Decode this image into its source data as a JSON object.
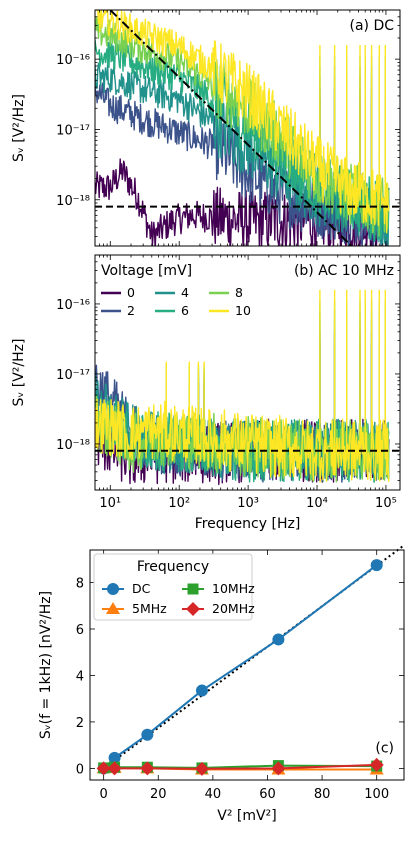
{
  "chart_data": [
    {
      "panel": "a",
      "type": "line",
      "annotation": "(a) DC",
      "xlabel": "",
      "ylabel": "S_V [V²/Hz]",
      "xscale": "log",
      "yscale": "log",
      "xlim": [
        6,
        160000
      ],
      "ylim": [
        2.2e-19,
        5e-16
      ],
      "yticks": [
        1e-18,
        1e-17,
        1e-16
      ],
      "ytick_labels": [
        "10⁻¹⁸",
        "10⁻¹⁷",
        "10⁻¹⁶"
      ],
      "reference_lines": [
        {
          "style": "dashed",
          "color": "#000000",
          "points": [
            [
              6,
              8e-19
            ],
            [
              160000,
              8e-19
            ]
          ]
        },
        {
          "style": "dashdot",
          "color": "#000000",
          "points": [
            [
              10,
              5e-16
            ],
            [
              31600,
              2.2e-19
            ]
          ]
        }
      ],
      "series": [
        {
          "name": "0",
          "color": "#440154",
          "points": [
            [
              10,
              1.5e-18
            ],
            [
              15,
              2.6e-18
            ],
            [
              25,
              1.1e-18
            ],
            [
              40,
              3e-19
            ],
            [
              80,
              5e-19
            ],
            [
              150,
              6e-19
            ],
            [
              1000,
              5e-19
            ],
            [
              10000,
              5e-19
            ],
            [
              100000,
              5e-19
            ]
          ]
        },
        {
          "name": "2",
          "color": "#3b528b",
          "points": [
            [
              6,
              3.7e-17
            ],
            [
              10,
              2.2e-17
            ],
            [
              30,
              1.4e-17
            ],
            [
              100,
              9e-18
            ],
            [
              300,
              6e-18
            ],
            [
              1000,
              2.4e-18
            ],
            [
              3000,
              1.2e-18
            ],
            [
              10000,
              8e-19
            ],
            [
              100000,
              5e-19
            ]
          ]
        },
        {
          "name": "4",
          "color": "#21918c",
          "points": [
            [
              6,
              5.5e-17
            ],
            [
              10,
              5.5e-17
            ],
            [
              30,
              3.7e-17
            ],
            [
              100,
              2.7e-17
            ],
            [
              300,
              1.3e-17
            ],
            [
              1000,
              5.5e-18
            ],
            [
              3000,
              2.3e-18
            ],
            [
              10000,
              1.2e-18
            ],
            [
              30000,
              9e-19
            ],
            [
              100000,
              6e-19
            ]
          ]
        },
        {
          "name": "6",
          "color": "#27ad81",
          "points": [
            [
              6,
              1.3e-16
            ],
            [
              10,
              1.2e-16
            ],
            [
              30,
              8e-17
            ],
            [
              100,
              5.5e-17
            ],
            [
              300,
              2.7e-17
            ],
            [
              1000,
              1.2e-17
            ],
            [
              3000,
              4.5e-18
            ],
            [
              10000,
              1.6e-18
            ],
            [
              30000,
              1e-18
            ],
            [
              100000,
              7e-19
            ]
          ]
        },
        {
          "name": "8",
          "color": "#7ad151",
          "points": [
            [
              6,
              2.5e-16
            ],
            [
              10,
              2.2e-16
            ],
            [
              30,
              1.4e-16
            ],
            [
              100,
              9.5e-17
            ],
            [
              300,
              4.5e-17
            ],
            [
              1000,
              2e-17
            ],
            [
              3000,
              7.5e-18
            ],
            [
              10000,
              2.2e-18
            ],
            [
              30000,
              1.2e-18
            ],
            [
              100000,
              8e-19
            ]
          ]
        },
        {
          "name": "10",
          "color": "#fde725",
          "points": [
            [
              6,
              4e-16
            ],
            [
              10,
              3.5e-16
            ],
            [
              30,
              2.3e-16
            ],
            [
              100,
              1.5e-16
            ],
            [
              300,
              7.5e-17
            ],
            [
              1000,
              3.2e-17
            ],
            [
              3000,
              1e-17
            ],
            [
              10000,
              3e-18
            ],
            [
              30000,
              1.4e-18
            ],
            [
              100000,
              9e-19
            ]
          ]
        }
      ]
    },
    {
      "panel": "b",
      "type": "line",
      "annotation": "(b) AC 10 MHz",
      "legend_title": "Voltage [mV]",
      "legend_placement": "top-left",
      "xlabel": "Frequency [Hz]",
      "ylabel": "S_V [V²/Hz]",
      "xscale": "log",
      "yscale": "log",
      "xlim": [
        6,
        160000
      ],
      "ylim": [
        2.2e-19,
        5e-16
      ],
      "xticks": [
        10,
        100,
        1000,
        10000,
        100000
      ],
      "xtick_labels": [
        "10¹",
        "10²",
        "10³",
        "10⁴",
        "10⁵"
      ],
      "yticks": [
        1e-18,
        1e-17,
        1e-16
      ],
      "ytick_labels": [
        "10⁻¹⁸",
        "10⁻¹⁷",
        "10⁻¹⁶"
      ],
      "reference_lines": [
        {
          "style": "dashed",
          "color": "#000000",
          "points": [
            [
              6,
              8e-19
            ],
            [
              160000,
              8e-19
            ]
          ]
        }
      ],
      "series": [
        {
          "name": "0",
          "color": "#440154",
          "points": [
            [
              6,
              1.2e-18
            ],
            [
              10,
              9e-19
            ],
            [
              20,
              6e-19
            ],
            [
              50,
              7e-19
            ],
            [
              200,
              7e-19
            ],
            [
              1000,
              8e-19
            ],
            [
              10000,
              8e-19
            ],
            [
              100000,
              8e-19
            ]
          ]
        },
        {
          "name": "2",
          "color": "#3b528b",
          "points": [
            [
              6,
              8e-18
            ],
            [
              10,
              4e-18
            ],
            [
              20,
              1.6e-18
            ],
            [
              50,
              1e-18
            ],
            [
              200,
              8e-19
            ],
            [
              1000,
              8e-19
            ],
            [
              10000,
              8e-19
            ],
            [
              100000,
              8e-19
            ]
          ]
        },
        {
          "name": "4",
          "color": "#21918c",
          "points": [
            [
              6,
              4e-18
            ],
            [
              10,
              2.5e-18
            ],
            [
              20,
              1.4e-18
            ],
            [
              50,
              1e-18
            ],
            [
              200,
              9e-19
            ],
            [
              1000,
              8e-19
            ],
            [
              10000,
              8e-19
            ],
            [
              100000,
              8e-19
            ]
          ]
        },
        {
          "name": "6",
          "color": "#27ad81",
          "points": [
            [
              6,
              3e-18
            ],
            [
              10,
              2e-18
            ],
            [
              20,
              1.2e-18
            ],
            [
              50,
              1.1e-18
            ],
            [
              200,
              1e-18
            ],
            [
              1000,
              8e-19
            ],
            [
              10000,
              8e-19
            ],
            [
              100000,
              8e-19
            ]
          ]
        },
        {
          "name": "8",
          "color": "#7ad151",
          "points": [
            [
              6,
              2.2e-18
            ],
            [
              10,
              1.5e-18
            ],
            [
              20,
              1e-18
            ],
            [
              50,
              1.3e-18
            ],
            [
              200,
              1.1e-18
            ],
            [
              1000,
              9e-19
            ],
            [
              10000,
              8e-19
            ],
            [
              100000,
              8e-19
            ]
          ]
        },
        {
          "name": "10",
          "color": "#fde725",
          "points": [
            [
              6,
              2e-18
            ],
            [
              10,
              1.8e-18
            ],
            [
              20,
              1.4e-18
            ],
            [
              50,
              1.6e-18
            ],
            [
              200,
              1.3e-18
            ],
            [
              1000,
              1e-18
            ],
            [
              10000,
              8e-19
            ],
            [
              100000,
              8e-19
            ]
          ]
        }
      ]
    },
    {
      "panel": "c",
      "type": "line",
      "annotation": "(c)",
      "legend_title": "Frequency",
      "legend_placement": "top-left",
      "xlabel": "V² [mV²]",
      "ylabel": "S_V(f = 1kHz) [nV²/Hz]",
      "xlim": [
        -5,
        110
      ],
      "ylim": [
        -0.5,
        9.4
      ],
      "xticks": [
        0,
        20,
        40,
        60,
        80,
        100
      ],
      "yticks": [
        0,
        2,
        4,
        6,
        8
      ],
      "x": [
        0,
        4,
        16,
        36,
        64,
        100
      ],
      "reference_line": {
        "style": "dotted",
        "color": "#000000",
        "points": [
          [
            0,
            0
          ],
          [
            110,
            9.6
          ]
        ]
      },
      "series": [
        {
          "name": "DC",
          "color": "#1f77b4",
          "marker": "circle",
          "values": [
            0.0,
            0.45,
            1.45,
            3.35,
            5.55,
            8.75
          ]
        },
        {
          "name": "5MHz",
          "color": "#ff7f0e",
          "marker": "triangle",
          "values": [
            0.0,
            0.02,
            0.0,
            -0.05,
            -0.05,
            -0.05
          ]
        },
        {
          "name": "10MHz",
          "color": "#2ca02c",
          "marker": "square",
          "values": [
            0.02,
            0.05,
            0.05,
            0.02,
            0.12,
            0.1
          ]
        },
        {
          "name": "20MHz",
          "color": "#d62728",
          "marker": "diamond",
          "values": [
            0.0,
            0.0,
            0.0,
            -0.02,
            0.0,
            0.15
          ]
        }
      ]
    }
  ]
}
